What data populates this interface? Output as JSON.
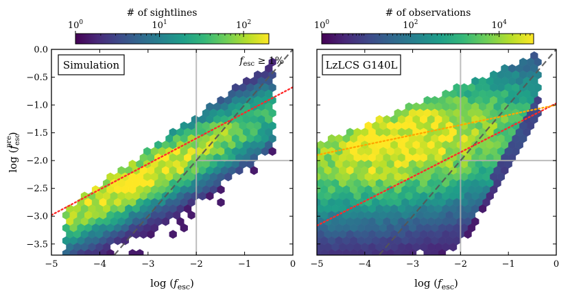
{
  "colors": {
    "viridis": [
      "#440154",
      "#482878",
      "#3e4989",
      "#31688e",
      "#26828e",
      "#1f9e89",
      "#35b779",
      "#6ece58",
      "#b5de2b",
      "#fde725"
    ],
    "red_fit": "#ff2a2a",
    "orange_fit": "#ffa500",
    "one_to_one": "#555555",
    "grid_line": "#b0b0b0"
  },
  "chart_data": [
    {
      "type": "heatmap",
      "panel": "left",
      "label": "Simulation",
      "annotation": "fesc ≥ 1%",
      "annotation_parts": {
        "f": "f",
        "sub": "esc",
        "rest": " ≥ 1%"
      },
      "xlabel_parts": {
        "pre": "log (",
        "f": "f",
        "sub": "esc",
        "post": ")"
      },
      "ylabel_parts": {
        "pre": "log (",
        "f": "f",
        "sub": "esc",
        "sup": "pre",
        "post": ")"
      },
      "xlim": [
        -5,
        0
      ],
      "ylim": [
        -3.7,
        0
      ],
      "xticks": [
        -5,
        -4,
        -3,
        -2,
        -1,
        0
      ],
      "xtick_labels": [
        "−5",
        "−4",
        "−3",
        "−2",
        "−1",
        "0"
      ],
      "yticks": [
        0.0,
        -0.5,
        -1.0,
        -1.5,
        -2.0,
        -2.5,
        -3.0,
        -3.5
      ],
      "ytick_labels": [
        "0.0",
        "−0.5",
        "−1.0",
        "−1.5",
        "−2.0",
        "−2.5",
        "−3.0",
        "−3.5"
      ],
      "reference_lines": {
        "vertical_x": -2,
        "horizontal_y": -2
      },
      "one_to_one": true,
      "fits": [
        {
          "name": "linear fit",
          "color": "red",
          "slope": 0.46,
          "intercept": -0.68
        }
      ],
      "density": {
        "ridge_slope": 0.43,
        "ridge_intercept": -0.97,
        "ridge_width": 0.42,
        "peak_x": -3.1,
        "x_range": [
          -4.75,
          -0.35
        ],
        "log_max": 2.3,
        "upper_cut_slope": 0.62,
        "upper_cut_intercept": 0.0,
        "lower_cut_slope": 0.6,
        "lower_cut_intercept": -1.55,
        "low_density_fraction_shown": 0.62
      },
      "colorbar": {
        "title": "# of sightlines",
        "scale": "log",
        "vmin": 1,
        "vmax": 200,
        "ticks": [
          1,
          10,
          100
        ],
        "tick_base": "10",
        "tick_exps": [
          "0",
          "1",
          "2"
        ]
      }
    },
    {
      "type": "heatmap",
      "panel": "right",
      "label": "LzLCS G140L",
      "xlabel_parts": {
        "pre": "log (",
        "f": "f",
        "sub": "esc",
        "post": ")"
      },
      "xlim": [
        -5,
        0
      ],
      "ylim": [
        -3.7,
        0
      ],
      "xticks": [
        -5,
        -4,
        -3,
        -2,
        -1,
        0
      ],
      "xtick_labels": [
        "−5",
        "−4",
        "−3",
        "−2",
        "−1",
        "0"
      ],
      "yticks": [
        0.0,
        -0.5,
        -1.0,
        -1.5,
        -2.0,
        -2.5,
        -3.0,
        -3.5
      ],
      "reference_lines": {
        "vertical_x": -2,
        "horizontal_y": -2
      },
      "one_to_one": true,
      "fits": [
        {
          "name": "linear fit",
          "color": "red",
          "slope": 0.44,
          "intercept": -0.97
        },
        {
          "name": "linear fit",
          "color": "orange",
          "slope": 0.18,
          "intercept": -1.0
        }
      ],
      "density": {
        "ridge_slope": 0.12,
        "ridge_intercept": -1.3,
        "ridge_width": 0.85,
        "peak_x": -3.2,
        "x_range": [
          -5.0,
          -0.35
        ],
        "log_max": 4.7,
        "upper_cut_slope": 0.35,
        "upper_cut_intercept": 0.0,
        "lower_cut_slope": 1.6,
        "lower_cut_intercept": -0.2,
        "low_density_fraction_shown": 0.75
      },
      "colorbar": {
        "title": "# of observations",
        "scale": "log",
        "vmin": 1,
        "vmax": 60000,
        "ticks": [
          1,
          100,
          10000
        ],
        "tick_base": "10",
        "tick_exps": [
          "0",
          "2",
          "4"
        ]
      }
    }
  ]
}
